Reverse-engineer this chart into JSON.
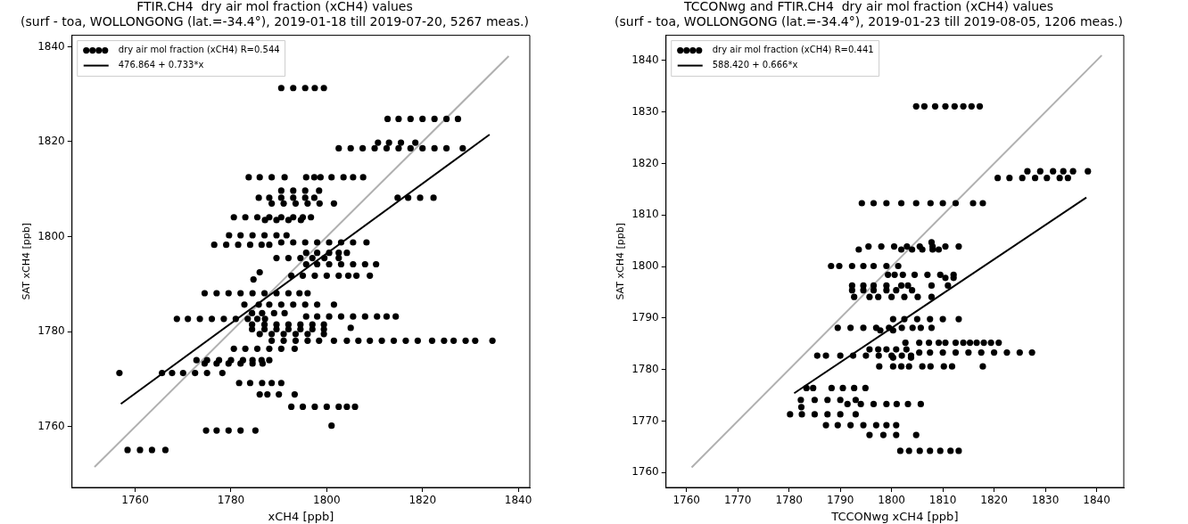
{
  "chart_data": [
    {
      "type": "scatter",
      "title": "FTIR.CH4  dry air mol fraction (xCH4) values",
      "subtitle": "(surf - toa, WOLLONGONG (lat.=-34.4°), 2019-01-18 till 2019-07-20, 5267 meas.)",
      "xlabel": "xCH4 [ppb]",
      "ylabel": "SAT xCH4 [ppb]",
      "xlim": [
        1746.8,
        1842.4
      ],
      "ylim": [
        1747.2,
        1842.4
      ],
      "xticks": [
        1760,
        1780,
        1800,
        1820,
        1840
      ],
      "yticks": [
        1760,
        1780,
        1800,
        1820,
        1840
      ],
      "grid": false,
      "legend": "top left",
      "series": [
        {
          "name": "dry air mol fraction (xCH4) R=0.544",
          "color": "#000000",
          "marker": "circle",
          "x": [
            1790.5,
            1793,
            1795.5,
            1797.5,
            1799.4,
            1812.7,
            1815,
            1817.5,
            1820,
            1822.5,
            1825,
            1827.4,
            1810.7,
            1813,
            1815.5,
            1818.5,
            1802.5,
            1805,
            1807.5,
            1810,
            1812.5,
            1815,
            1817.5,
            1820,
            1822.5,
            1825,
            1828.4,
            1783.7,
            1786,
            1788.5,
            1791.2,
            1795.7,
            1797.4,
            1798.7,
            1801,
            1803.5,
            1805.5,
            1807.6,
            1790.5,
            1793,
            1795.5,
            1798.4,
            1785.8,
            1788,
            1790.5,
            1793,
            1795.5,
            1797.4,
            1814.8,
            1817,
            1819.5,
            1822.3,
            1788.5,
            1791,
            1793.5,
            1796,
            1798.5,
            1801.5,
            1780.6,
            1783,
            1785.5,
            1788,
            1790.5,
            1793,
            1795,
            1796.7,
            1787.1,
            1789.5,
            1792,
            1794.6,
            1779.6,
            1782,
            1784.5,
            1787,
            1789.5,
            1791.6,
            1776.5,
            1779,
            1781.5,
            1784,
            1786.4,
            1788,
            1790.5,
            1793,
            1795.5,
            1798,
            1800.5,
            1803,
            1805.5,
            1808.3,
            1795.7,
            1798,
            1800.5,
            1802.5,
            1804.2,
            1789.5,
            1792,
            1794.5,
            1797,
            1799.5,
            1802.5,
            1795.7,
            1798,
            1800.5,
            1803,
            1805.5,
            1808,
            1810.3,
            1792.6,
            1795,
            1797.5,
            1800,
            1802.5,
            1804.5,
            1806.2,
            1809,
            1784.7,
            1786,
            1774.5,
            1777,
            1779.5,
            1782,
            1784.5,
            1787,
            1789.5,
            1792,
            1794.3,
            1796,
            1782.8,
            1785.8,
            1788,
            1790.5,
            1793,
            1795.5,
            1798,
            1801.5,
            1784.4,
            1786.5,
            1789,
            1791.2,
            1795.7,
            1798,
            1800.5,
            1803,
            1805.5,
            1808,
            1810.5,
            1812.5,
            1814.4,
            1768.7,
            1771,
            1773.5,
            1776,
            1778.5,
            1781,
            1783.5,
            1785.5,
            1787.1,
            1784.4,
            1787,
            1789.5,
            1792,
            1794.5,
            1797,
            1799.4,
            1784.4,
            1787,
            1789.5,
            1792,
            1794.5,
            1797,
            1799.4,
            1786,
            1788.5,
            1791,
            1793.5,
            1796,
            1799.4,
            1805,
            1788.5,
            1791,
            1793.5,
            1796,
            1798.4,
            1801.5,
            1804.2,
            1806.6,
            1809,
            1811.5,
            1814,
            1816.5,
            1819,
            1822,
            1824.5,
            1826.5,
            1829,
            1831,
            1834.6,
            1780.6,
            1783,
            1785.5,
            1788,
            1790.5,
            1793.3,
            1772.8,
            1775,
            1777.5,
            1780,
            1782.5,
            1784.5,
            1786.4,
            1788,
            1774.5,
            1777,
            1779.5,
            1782,
            1784.5,
            1786.6,
            1756.7,
            1765.6,
            1767.7,
            1770,
            1772.5,
            1775,
            1778.2,
            1781.7,
            1784,
            1786.5,
            1788.5,
            1790.5,
            1786,
            1787.6,
            1790,
            1793.3,
            1792.6,
            1795,
            1797.5,
            1800,
            1802.5,
            1804.2,
            1805.9,
            1801,
            1774.8,
            1777,
            1779.5,
            1782,
            1785.1,
            1758.4,
            1761,
            1763.5,
            1766.3
          ],
          "values": [
            1831.3,
            1831.3,
            1831.3,
            1831.3,
            1831.3,
            1824.8,
            1824.8,
            1824.8,
            1824.8,
            1824.8,
            1824.8,
            1824.8,
            1819.8,
            1819.8,
            1819.8,
            1819.8,
            1818.6,
            1818.6,
            1818.6,
            1818.6,
            1818.6,
            1818.6,
            1818.6,
            1818.6,
            1818.6,
            1818.6,
            1818.6,
            1812.5,
            1812.5,
            1812.5,
            1812.5,
            1812.5,
            1812.5,
            1812.5,
            1812.5,
            1812.5,
            1812.5,
            1812.5,
            1809.7,
            1809.7,
            1809.7,
            1809.7,
            1808.2,
            1808.2,
            1808.2,
            1808.2,
            1808.2,
            1808.2,
            1808.2,
            1808.2,
            1808.2,
            1808.2,
            1807,
            1807,
            1807,
            1807,
            1807,
            1807,
            1804.1,
            1804.1,
            1804.1,
            1804.1,
            1804.1,
            1804.1,
            1804.1,
            1804.1,
            1803.5,
            1803.5,
            1803.5,
            1803.5,
            1800.3,
            1800.3,
            1800.3,
            1800.3,
            1800.3,
            1800.3,
            1798.3,
            1798.3,
            1798.3,
            1798.3,
            1798.3,
            1798.3,
            1798.8,
            1798.8,
            1798.8,
            1798.8,
            1798.8,
            1798.8,
            1798.8,
            1798.8,
            1796.6,
            1796.6,
            1796.6,
            1796.6,
            1796.6,
            1795.5,
            1795.5,
            1795.5,
            1795.5,
            1795.5,
            1795.5,
            1794.2,
            1794.2,
            1794.2,
            1794.2,
            1794.2,
            1794.2,
            1794.2,
            1791.8,
            1791.8,
            1791.8,
            1791.8,
            1791.8,
            1791.8,
            1791.8,
            1791.8,
            1791,
            1792.5,
            1788.1,
            1788.1,
            1788.1,
            1788.1,
            1788.1,
            1788.1,
            1788.1,
            1788.1,
            1788.1,
            1788.1,
            1785.7,
            1785.7,
            1785.7,
            1785.7,
            1785.7,
            1785.7,
            1785.7,
            1785.7,
            1783.9,
            1783.9,
            1783.9,
            1783.9,
            1783.2,
            1783.2,
            1783.2,
            1783.2,
            1783.2,
            1783.2,
            1783.2,
            1783.2,
            1783.2,
            1782.7,
            1782.7,
            1782.7,
            1782.7,
            1782.7,
            1782.7,
            1782.7,
            1782.7,
            1782.7,
            1781.5,
            1781.5,
            1781.5,
            1781.5,
            1781.5,
            1781.5,
            1781.5,
            1780.5,
            1780.5,
            1780.5,
            1780.5,
            1780.5,
            1780.5,
            1780.5,
            1779.5,
            1779.5,
            1779.5,
            1779.5,
            1779.5,
            1779.5,
            1780.8,
            1778.1,
            1778.1,
            1778.1,
            1778.1,
            1778.1,
            1778.1,
            1778.1,
            1778.1,
            1778.1,
            1778.1,
            1778.1,
            1778.1,
            1778.1,
            1778.1,
            1778.1,
            1778.1,
            1778.1,
            1778.1,
            1778.1,
            1776.4,
            1776.4,
            1776.4,
            1776.4,
            1776.4,
            1776.4,
            1774,
            1774,
            1774,
            1774,
            1774,
            1774,
            1774,
            1774,
            1773.3,
            1773.3,
            1773.3,
            1773.3,
            1773.3,
            1773.3,
            1771.3,
            1771.3,
            1771.3,
            1771.3,
            1771.3,
            1771.3,
            1771.3,
            1769.2,
            1769.2,
            1769.2,
            1769.2,
            1769.2,
            1766.8,
            1766.8,
            1766.8,
            1766.8,
            1764.2,
            1764.2,
            1764.2,
            1764.2,
            1764.2,
            1764.2,
            1764.2,
            1760.2,
            1759.2,
            1759.2,
            1759.2,
            1759.2,
            1759.2,
            1755.1,
            1755.1,
            1755.1,
            1755.1
          ]
        },
        {
          "name": "476.864 + 0.733*x",
          "color": "#000000",
          "type": "line",
          "marker": "none",
          "x": [
            1757,
            1834
          ],
          "values": [
            1764.8,
            1821.5
          ]
        },
        {
          "color": "#b0b0b0",
          "type": "line",
          "marker": "none",
          "x": [
            1751.5,
            1838
          ],
          "values": [
            1751.5,
            1838
          ]
        }
      ]
    },
    {
      "type": "scatter",
      "title": "TCCONwg and FTIR.CH4  dry air mol fraction (xCH4) values",
      "subtitle": "(surf - toa, WOLLONGONG (lat.=-34.4°), 2019-01-23 till 2019-08-05, 1206 meas.)",
      "xlabel": "TCCONwg xCH4 [ppb]",
      "ylabel": "SAT xCH4 [ppb]",
      "xlim": [
        1756.0,
        1845.3
      ],
      "ylim": [
        1757.1,
        1844.9
      ],
      "xticks": [
        1760,
        1770,
        1780,
        1790,
        1800,
        1810,
        1820,
        1830,
        1840
      ],
      "yticks": [
        1760,
        1770,
        1780,
        1790,
        1800,
        1810,
        1820,
        1830,
        1840
      ],
      "grid": false,
      "legend": "top left",
      "series": [
        {
          "name": "dry air mol fraction (xCH4) R=0.441",
          "color": "#000000",
          "marker": "circle",
          "x": [
            1804.8,
            1806.4,
            1808.5,
            1810.5,
            1812.3,
            1814,
            1815.6,
            1817.2,
            1826.5,
            1829,
            1831.5,
            1833.5,
            1835.4,
            1838.3,
            1820.7,
            1823,
            1825.5,
            1828,
            1830.3,
            1832.8,
            1834.4,
            1794.2,
            1796.5,
            1799,
            1801.9,
            1804.8,
            1807.6,
            1810,
            1812.5,
            1815.9,
            1817.8,
            1795.5,
            1798,
            1800.5,
            1803,
            1805.5,
            1808,
            1810.5,
            1813.1,
            1801.9,
            1804,
            1806,
            1808,
            1809.2,
            1793.6,
            1807.8,
            1788.2,
            1789.8,
            1792.3,
            1794.5,
            1796.5,
            1799,
            1801.3,
            1799.3,
            1800.6,
            1802.2,
            1804.5,
            1807,
            1809.5,
            1812.1,
            1810.5,
            1812.1,
            1792.3,
            1794.5,
            1796.5,
            1799,
            1801.9,
            1803.2,
            1807.8,
            1811,
            1792.3,
            1794.5,
            1796.5,
            1799,
            1800.9,
            1804,
            1792.7,
            1795.7,
            1797.4,
            1800,
            1802.5,
            1805.1,
            1807.8,
            1800.3,
            1802.5,
            1805,
            1807.5,
            1810,
            1813.1,
            1789.5,
            1792,
            1794.5,
            1797,
            1799.5,
            1802,
            1804.1,
            1805.7,
            1807.8,
            1797.8,
            1800.3,
            1802.7,
            1805.4,
            1807.3,
            1809.2,
            1810.5,
            1812.5,
            1814,
            1815.3,
            1816.6,
            1818,
            1819.4,
            1820.9,
            1795.7,
            1797.4,
            1799,
            1800.9,
            1802.9,
            1805.4,
            1807.5,
            1810,
            1812.5,
            1815,
            1817.5,
            1820,
            1822.5,
            1825,
            1827.4,
            1785.5,
            1787.2,
            1790,
            1792.5,
            1795,
            1797.5,
            1800,
            1802,
            1803.8,
            1800.3,
            1803.8,
            1797.6,
            1800.3,
            1801.9,
            1803.4,
            1806,
            1807.6,
            1810.2,
            1811.8,
            1817.8,
            1783.4,
            1784.7,
            1788.3,
            1790.5,
            1792.7,
            1794.9,
            1782.3,
            1785,
            1787.5,
            1790,
            1793,
            1791.4,
            1794,
            1796.5,
            1799,
            1801,
            1803.2,
            1805.7,
            1782.4,
            1780.2,
            1782.5,
            1785,
            1787.5,
            1790,
            1793,
            1787.2,
            1789.5,
            1792,
            1794.5,
            1797,
            1799,
            1800.9,
            1795.7,
            1798.4,
            1800.9,
            1804.8,
            1801.7,
            1803.4,
            1805.5,
            1807.5,
            1809.5,
            1811.5,
            1813.1
          ],
          "values": [
            1831.1,
            1831.1,
            1831.1,
            1831.1,
            1831.1,
            1831.1,
            1831.1,
            1831.1,
            1818.5,
            1818.5,
            1818.5,
            1818.5,
            1818.5,
            1818.5,
            1817.2,
            1817.2,
            1817.2,
            1817.2,
            1817.2,
            1817.2,
            1817.2,
            1812.3,
            1812.3,
            1812.3,
            1812.3,
            1812.3,
            1812.3,
            1812.3,
            1812.3,
            1812.3,
            1812.3,
            1803.9,
            1803.9,
            1803.9,
            1803.9,
            1803.9,
            1803.9,
            1803.9,
            1803.9,
            1803.3,
            1803.3,
            1803.3,
            1803.3,
            1803.3,
            1803.3,
            1804.7,
            1800.1,
            1800.1,
            1800.1,
            1800.1,
            1800.1,
            1800.1,
            1800.1,
            1798.4,
            1798.4,
            1798.4,
            1798.4,
            1798.4,
            1798.4,
            1798.4,
            1797.8,
            1797.8,
            1796.3,
            1796.3,
            1796.3,
            1796.3,
            1796.3,
            1796.3,
            1796.3,
            1796.3,
            1795.4,
            1795.4,
            1795.4,
            1795.4,
            1795.4,
            1795.4,
            1794.1,
            1794.1,
            1794.1,
            1794.1,
            1794.1,
            1794.1,
            1794.1,
            1789.8,
            1789.8,
            1789.8,
            1789.8,
            1789.8,
            1789.8,
            1788.1,
            1788.1,
            1788.1,
            1788.1,
            1788.1,
            1788.1,
            1788.1,
            1788.1,
            1788.1,
            1787.6,
            1787.6,
            1785.2,
            1785.2,
            1785.2,
            1785.2,
            1785.2,
            1785.2,
            1785.2,
            1785.2,
            1785.2,
            1785.2,
            1785.2,
            1785.2,
            1783.9,
            1783.9,
            1783.9,
            1783.9,
            1783.9,
            1783.3,
            1783.3,
            1783.3,
            1783.3,
            1783.3,
            1783.3,
            1783.3,
            1783.3,
            1783.3,
            1783.3,
            1782.7,
            1782.7,
            1782.7,
            1782.7,
            1782.7,
            1782.7,
            1782.7,
            1782.7,
            1782.7,
            1782.3,
            1782.3,
            1780.6,
            1780.6,
            1780.6,
            1780.6,
            1780.6,
            1780.6,
            1780.6,
            1780.6,
            1780.6,
            1776.4,
            1776.4,
            1776.4,
            1776.4,
            1776.4,
            1776.4,
            1774.1,
            1774.1,
            1774.1,
            1774.1,
            1774.1,
            1773.3,
            1773.3,
            1773.3,
            1773.3,
            1773.3,
            1773.3,
            1773.3,
            1772.7,
            1771.3,
            1771.3,
            1771.3,
            1771.3,
            1771.3,
            1771.3,
            1769.2,
            1769.2,
            1769.2,
            1769.2,
            1769.2,
            1769.2,
            1769.2,
            1767.3,
            1767.3,
            1767.3,
            1767.3,
            1764.2,
            1764.2,
            1764.2,
            1764.2,
            1764.2,
            1764.2,
            1764.2
          ]
        },
        {
          "name": "588.420 + 0.666*x",
          "color": "#000000",
          "type": "line",
          "marker": "none",
          "x": [
            1781,
            1838
          ],
          "values": [
            1775.4,
            1813.4
          ]
        },
        {
          "color": "#b0b0b0",
          "type": "line",
          "marker": "none",
          "x": [
            1761,
            1841
          ],
          "values": [
            1761,
            1841
          ]
        }
      ]
    }
  ]
}
